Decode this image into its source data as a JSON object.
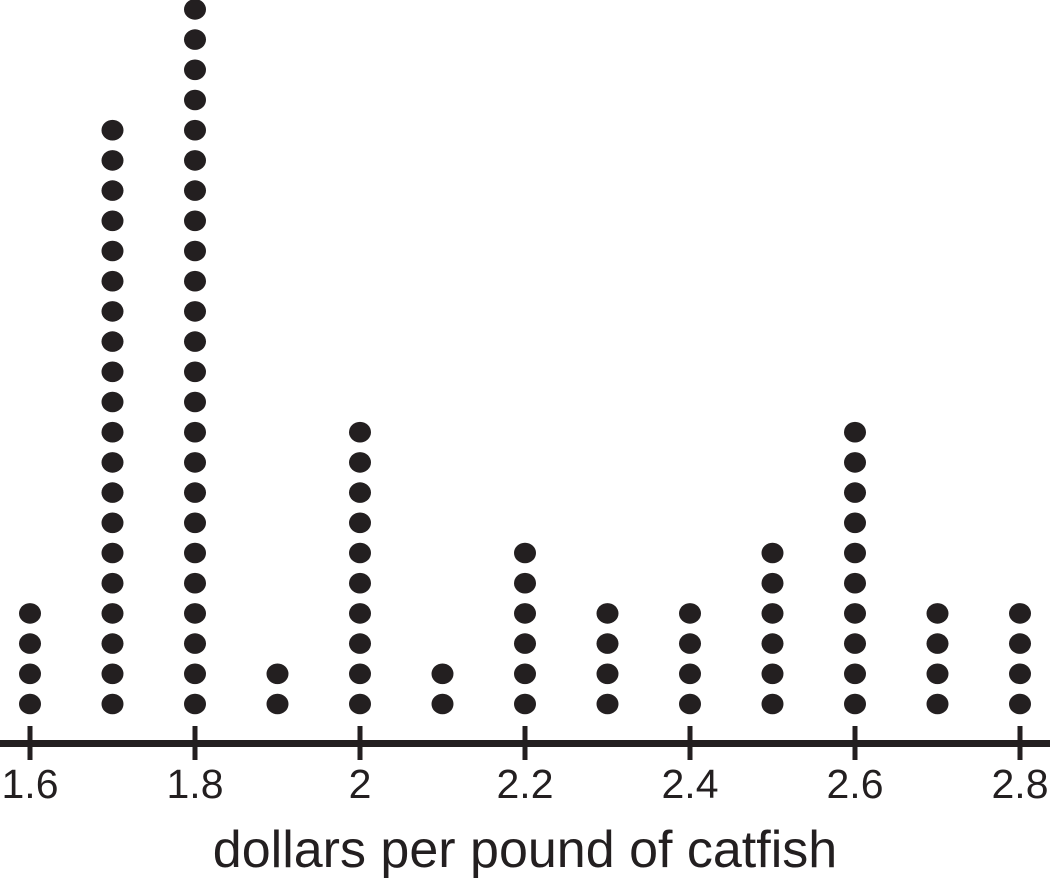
{
  "figure": {
    "background_color": "#ffffff",
    "ink_color": "#231f20"
  },
  "chart_data": {
    "type": "dot_plot",
    "title": "",
    "xlabel": "dollars per pound of catfish",
    "ylabel": "",
    "x_values": [
      1.6,
      1.7,
      1.8,
      1.9,
      2.0,
      2.1,
      2.2,
      2.3,
      2.4,
      2.5,
      2.6,
      2.7,
      2.8
    ],
    "counts": [
      4,
      20,
      24,
      2,
      10,
      2,
      6,
      4,
      4,
      6,
      10,
      4,
      4
    ],
    "total_points": 100,
    "axis": {
      "min": 1.6,
      "max": 2.8,
      "tick_step": 0.2,
      "tick_labels": [
        "1.6",
        "1.8",
        "2",
        "2.2",
        "2.4",
        "2.6",
        "2.8"
      ],
      "tick_values": [
        1.6,
        1.8,
        2.0,
        2.2,
        2.4,
        2.6,
        2.8
      ]
    },
    "grid": false,
    "legend_position": "none",
    "dot_color": "#231f20",
    "axis_color": "#231f20"
  }
}
